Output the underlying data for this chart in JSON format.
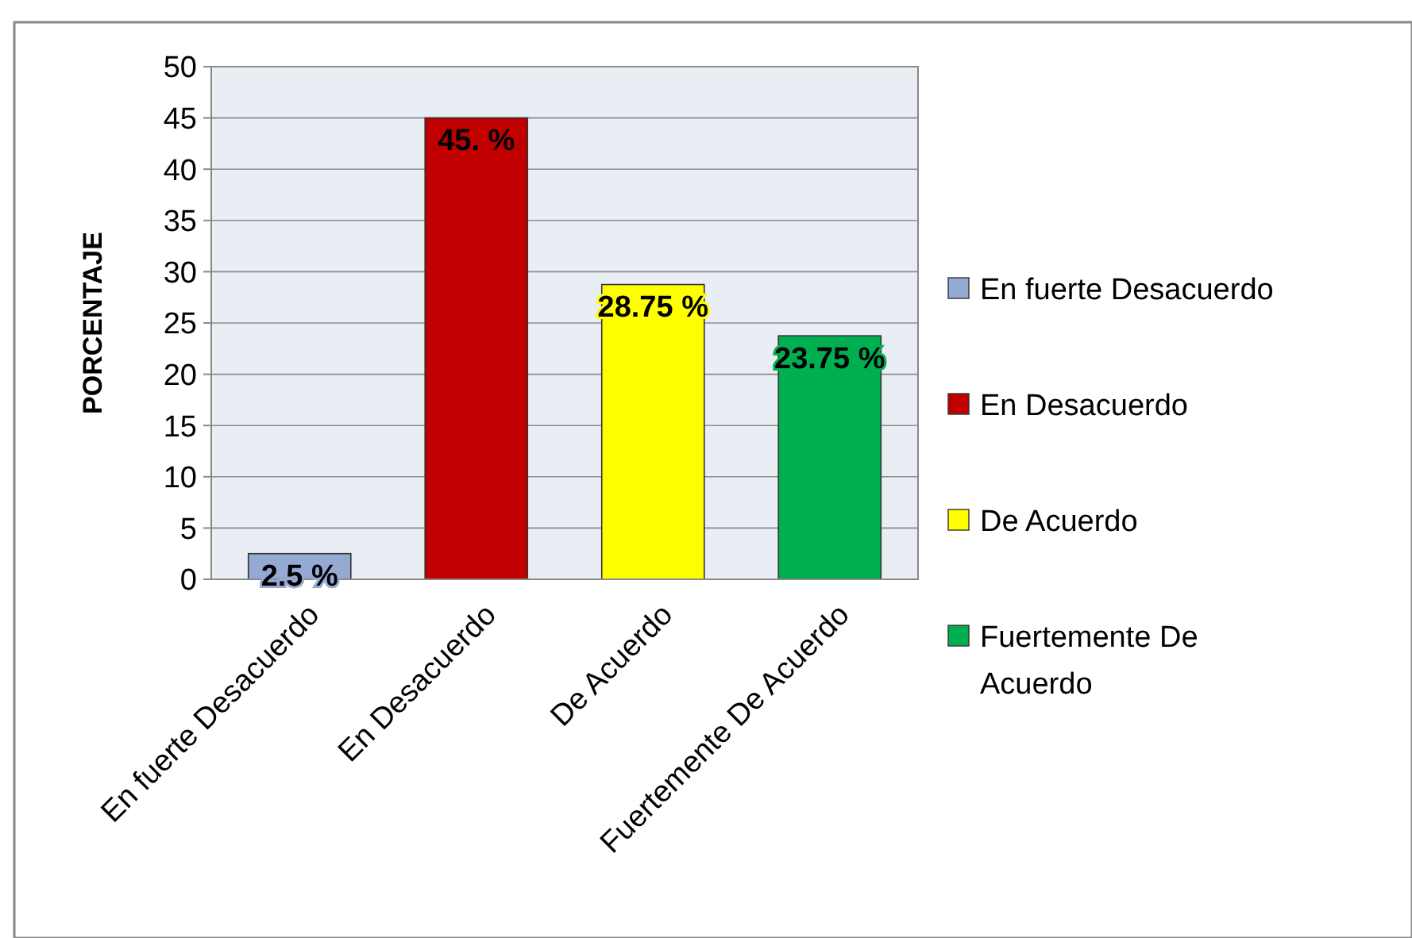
{
  "chart_data": {
    "type": "bar",
    "ylabel": "PORCENTAJE",
    "categories": [
      "En fuerte Desacuerdo",
      "En Desacuerdo",
      "De Acuerdo",
      "Fuertemente De Acuerdo"
    ],
    "series": [
      {
        "name": "En fuerte Desacuerdo",
        "color": "#95aad3",
        "values": [
          2.5,
          null,
          null,
          null
        ],
        "value_labels": [
          "2.5 %",
          null,
          null,
          null
        ]
      },
      {
        "name": "En Desacuerdo",
        "color": "#c00000",
        "values": [
          null,
          45,
          null,
          null
        ],
        "value_labels": [
          null,
          "45. %",
          null,
          null
        ]
      },
      {
        "name": "De Acuerdo",
        "color": "#ffff00",
        "values": [
          null,
          null,
          28.75,
          null
        ],
        "value_labels": [
          null,
          null,
          "28.75 %",
          null
        ]
      },
      {
        "name": "Fuertemente De Acuerdo",
        "color": "#00b050",
        "values": [
          null,
          null,
          null,
          23.75
        ],
        "value_labels": [
          null,
          null,
          null,
          "23.75 %"
        ]
      }
    ],
    "ylim": [
      0,
      50
    ],
    "yticks": [
      0,
      5,
      10,
      15,
      20,
      25,
      30,
      35,
      40,
      45,
      50
    ],
    "grid": "y",
    "legend": "right"
  }
}
